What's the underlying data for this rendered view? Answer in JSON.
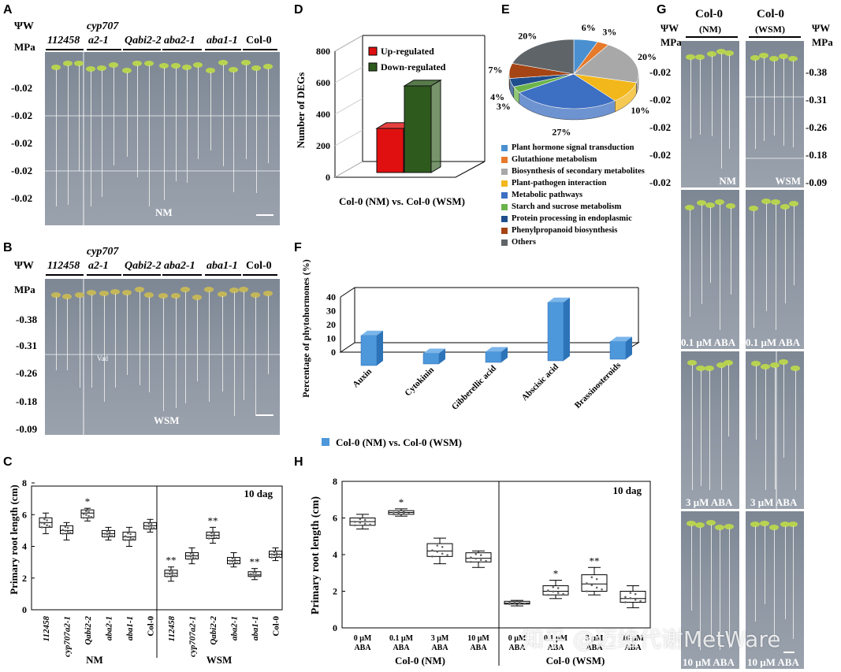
{
  "panel_a": {
    "label": "A",
    "psi_label": "ΨW",
    "mpa_label": "MPa",
    "genotype_super": "cyp707",
    "genotypes": [
      "112458",
      "a2-1",
      "Qabi2-2",
      "aba2-1",
      "aba1-1",
      "Col-0"
    ],
    "values": [
      "-0.02",
      "-0.02",
      "-0.02",
      "-0.02",
      "-0.02"
    ],
    "condition": "NM"
  },
  "panel_b": {
    "label": "B",
    "psi_label": "ΨW",
    "mpa_label": "MPa",
    "genotype_super": "cyp707",
    "genotypes": [
      "112458",
      "a2-1",
      "Qabi2-2",
      "aba2-1",
      "aba1-1",
      "Col-0"
    ],
    "values": [
      "-0.38",
      "-0.31",
      "-0.26",
      "-0.18",
      "-0.09"
    ],
    "condition": "WSM",
    "annotation": "Vad"
  },
  "panel_c": {
    "label": "C",
    "chart_data": {
      "type": "boxplot",
      "ylabel": "Primary root length (cm)",
      "ylim": [
        0,
        8
      ],
      "yticks": [
        "0",
        "2",
        "4",
        "6",
        "8"
      ],
      "annotation": "10 dag",
      "categories": [
        "112458",
        "cyp707a2-1",
        "Qabi2-2",
        "aba2-1",
        "aba1-1",
        "Col-0",
        "112458",
        "cyp707a2-1",
        "Qabi2-2",
        "aba2-1",
        "aba1-1",
        "Col-0"
      ],
      "groups": [
        "NM",
        "WSM"
      ],
      "boxes": [
        {
          "q1": 5.2,
          "median": 5.5,
          "q3": 5.8,
          "min": 4.8,
          "max": 6.1,
          "sig": ""
        },
        {
          "q1": 4.8,
          "median": 5.0,
          "q3": 5.3,
          "min": 4.4,
          "max": 5.5,
          "sig": ""
        },
        {
          "q1": 5.8,
          "median": 6.1,
          "q3": 6.3,
          "min": 5.6,
          "max": 6.4,
          "sig": "*"
        },
        {
          "q1": 4.6,
          "median": 4.8,
          "q3": 5.0,
          "min": 4.4,
          "max": 5.2,
          "sig": ""
        },
        {
          "q1": 4.4,
          "median": 4.6,
          "q3": 4.9,
          "min": 4.0,
          "max": 5.2,
          "sig": ""
        },
        {
          "q1": 5.1,
          "median": 5.3,
          "q3": 5.5,
          "min": 4.9,
          "max": 5.7,
          "sig": ""
        },
        {
          "q1": 2.1,
          "median": 2.3,
          "q3": 2.5,
          "min": 1.8,
          "max": 2.7,
          "sig": "**"
        },
        {
          "q1": 3.2,
          "median": 3.4,
          "q3": 3.6,
          "min": 2.9,
          "max": 3.9,
          "sig": ""
        },
        {
          "q1": 4.5,
          "median": 4.7,
          "q3": 4.9,
          "min": 4.2,
          "max": 5.2,
          "sig": "**"
        },
        {
          "q1": 2.9,
          "median": 3.1,
          "q3": 3.3,
          "min": 2.7,
          "max": 3.6,
          "sig": ""
        },
        {
          "q1": 2.1,
          "median": 2.2,
          "q3": 2.4,
          "min": 1.9,
          "max": 2.6,
          "sig": "**"
        },
        {
          "q1": 3.3,
          "median": 3.5,
          "q3": 3.7,
          "min": 3.1,
          "max": 3.9,
          "sig": ""
        }
      ]
    }
  },
  "panel_d": {
    "label": "D",
    "chart_data": {
      "type": "bar",
      "ylabel": "Number of DEGs",
      "xlabel": "Col-0 (NM) vs. Col-0 (WSM)",
      "ylim": [
        0,
        800
      ],
      "yticks": [
        "0",
        "200",
        "400",
        "600",
        "800"
      ],
      "series": [
        {
          "name": "Up-regulated",
          "value": 330,
          "color": "#e01010"
        },
        {
          "name": "Down-regulated",
          "value": 600,
          "color": "#2e5a1e"
        }
      ]
    }
  },
  "panel_e": {
    "label": "E",
    "chart_data": {
      "type": "pie",
      "slices": [
        {
          "name": "Plant hormone signal transduction",
          "percent": 6,
          "label": "6%",
          "color": "#4a90d0"
        },
        {
          "name": "Glutathione metabolism",
          "percent": 3,
          "label": "3%",
          "color": "#e67a2a"
        },
        {
          "name": "Biosynthesis of secondary metabolites",
          "percent": 20,
          "label": "20%",
          "color": "#a8a8a8"
        },
        {
          "name": "Plant-pathogen interaction",
          "percent": 10,
          "label": "10%",
          "color": "#f2b71a"
        },
        {
          "name": "Metabolic pathways",
          "percent": 27,
          "label": "27%",
          "color": "#3d6fc2"
        },
        {
          "name": "Starch and sucrose metabolism",
          "percent": 3,
          "label": "3%",
          "color": "#6bb44a"
        },
        {
          "name": "Protein processing in endoplasmic",
          "percent": 4,
          "label": "4%",
          "color": "#1f4e8c"
        },
        {
          "name": "Phenylpropanoid biosynthesis",
          "percent": 7,
          "label": "7%",
          "color": "#a54515"
        },
        {
          "name": "Others",
          "percent": 20,
          "label": "20%",
          "color": "#5f6468"
        }
      ]
    }
  },
  "panel_f": {
    "label": "F",
    "chart_data": {
      "type": "bar",
      "ylabel": "Percentage of phytohormones (%)",
      "ylim": [
        0,
        40
      ],
      "yticks": [
        "0",
        "10",
        "20",
        "30",
        "40"
      ],
      "categories": [
        "Auxin",
        "Cytokinin",
        "Gibberellic acid",
        "Abscisic acid",
        "Brassinosteroids"
      ],
      "values": [
        17,
        6,
        6,
        33,
        10
      ],
      "legend": "Col-0 (NM) vs. Col-0 (WSM)",
      "color": "#4d97db"
    }
  },
  "panel_g": {
    "label": "G",
    "col_left": "Col-0",
    "col_left_cond": "(NM)",
    "col_right": "Col-0",
    "col_right_cond": "(WSM)",
    "psi_label": "ΨW",
    "mpa_label": "MPa",
    "left_values": [
      "-0.02",
      "-0.02",
      "-0.02",
      "-0.02",
      "-0.02"
    ],
    "right_values": [
      "-0.38",
      "-0.31",
      "-0.26",
      "-0.18",
      "-0.09"
    ],
    "row_labels_left": [
      "NM",
      "0.1 μM ABA",
      "3 μM ABA",
      "10 μM ABA"
    ],
    "row_labels_right": [
      "WSM",
      "0.1 μM ABA",
      "3 μM ABA",
      "10 μM ABA"
    ]
  },
  "panel_h": {
    "label": "H",
    "chart_data": {
      "type": "boxplot",
      "ylabel": "Primary root length (cm)",
      "ylim": [
        0,
        8
      ],
      "yticks": [
        "0",
        "2",
        "4",
        "6",
        "8"
      ],
      "annotation": "10 dag",
      "categories": [
        "0 μM ABA",
        "0.1 μM ABA",
        "3 μM ABA",
        "10 μM ABA",
        "0 μM ABA",
        "0.1 μM ABA",
        "3 μM ABA",
        "10 μM ABA"
      ],
      "groups": [
        "Col-0 (NM)",
        "Col-0 (WSM)"
      ],
      "boxes": [
        {
          "q1": 5.6,
          "median": 5.8,
          "q3": 6.0,
          "min": 5.4,
          "max": 6.2,
          "sig": ""
        },
        {
          "q1": 6.2,
          "median": 6.3,
          "q3": 6.4,
          "min": 6.1,
          "max": 6.5,
          "sig": "*"
        },
        {
          "q1": 3.9,
          "median": 4.2,
          "q3": 4.6,
          "min": 3.5,
          "max": 4.9,
          "sig": ""
        },
        {
          "q1": 3.6,
          "median": 3.8,
          "q3": 4.1,
          "min": 3.3,
          "max": 4.2,
          "sig": ""
        },
        {
          "q1": 1.3,
          "median": 1.35,
          "q3": 1.45,
          "min": 1.2,
          "max": 1.5,
          "sig": ""
        },
        {
          "q1": 1.8,
          "median": 2.0,
          "q3": 2.3,
          "min": 1.6,
          "max": 2.6,
          "sig": "*"
        },
        {
          "q1": 2.0,
          "median": 2.4,
          "q3": 2.9,
          "min": 1.8,
          "max": 3.3,
          "sig": "**"
        },
        {
          "q1": 1.4,
          "median": 1.6,
          "q3": 2.0,
          "min": 1.1,
          "max": 2.3,
          "sig": ""
        }
      ]
    }
  },
  "watermark": "知乎 @迈维代谢MetWare"
}
